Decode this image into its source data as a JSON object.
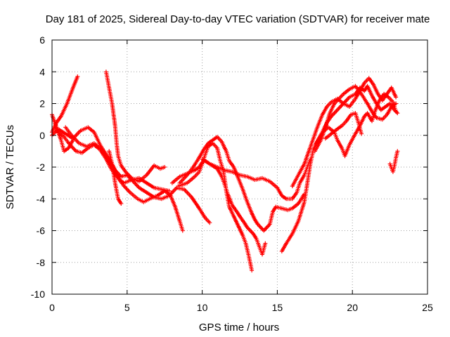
{
  "chart_data": {
    "type": "scatter",
    "title": "Day 181 of 2025, Sidereal Day-to-day VTEC variation (SDTVAR) for receiver mate",
    "xlabel": "GPS time / hours",
    "ylabel": "SDTVAR / TECUs",
    "xlim": [
      0,
      25
    ],
    "ylim": [
      -10,
      6
    ],
    "xticks": [
      0,
      5,
      10,
      15,
      20,
      25
    ],
    "yticks": [
      -10,
      -8,
      -6,
      -4,
      -2,
      0,
      2,
      4,
      6
    ],
    "grid": true,
    "marker": "plus",
    "color": "#ff0000",
    "tracks": [
      [
        [
          0.0,
          0.2
        ],
        [
          0.3,
          0.8
        ],
        [
          0.6,
          1.2
        ],
        [
          1.0,
          2.0
        ],
        [
          1.4,
          3.0
        ],
        [
          1.7,
          3.7
        ]
      ],
      [
        [
          0.0,
          1.3
        ],
        [
          0.3,
          0.5
        ],
        [
          0.6,
          -0.3
        ],
        [
          0.8,
          -1.0
        ],
        [
          1.1,
          -0.8
        ],
        [
          1.4,
          -0.3
        ]
      ],
      [
        [
          0.0,
          0.0
        ],
        [
          0.4,
          0.4
        ],
        [
          0.9,
          0.1
        ],
        [
          1.4,
          -0.2
        ],
        [
          1.9,
          0.3
        ],
        [
          2.4,
          0.5
        ],
        [
          2.8,
          0.2
        ],
        [
          3.2,
          -0.6
        ],
        [
          3.6,
          -1.2
        ],
        [
          4.0,
          -1.8
        ],
        [
          4.3,
          -2.4
        ],
        [
          4.5,
          -2.8
        ],
        [
          4.8,
          -3.0
        ],
        [
          5.3,
          -2.8
        ],
        [
          5.8,
          -2.7
        ],
        [
          6.3,
          -3.0
        ],
        [
          6.8,
          -3.3
        ],
        [
          7.3,
          -3.4
        ],
        [
          7.8,
          -3.5
        ]
      ],
      [
        [
          0.3,
          0.3
        ],
        [
          0.8,
          -0.1
        ],
        [
          1.2,
          -0.6
        ],
        [
          1.6,
          -1.0
        ],
        [
          2.0,
          -1.1
        ],
        [
          2.4,
          -0.8
        ],
        [
          2.8,
          -0.6
        ],
        [
          3.2,
          -0.9
        ],
        [
          3.6,
          -1.5
        ],
        [
          4.0,
          -2.2
        ],
        [
          4.4,
          -2.7
        ],
        [
          4.8,
          -3.2
        ],
        [
          5.2,
          -3.6
        ],
        [
          5.7,
          -4.0
        ],
        [
          6.1,
          -4.2
        ],
        [
          6.5,
          -4.0
        ],
        [
          7.0,
          -3.8
        ],
        [
          7.5,
          -3.5
        ],
        [
          7.9,
          -3.8
        ],
        [
          8.2,
          -4.5
        ],
        [
          8.5,
          -5.4
        ],
        [
          8.7,
          -6.0
        ]
      ],
      [
        [
          0.9,
          0.5
        ],
        [
          1.3,
          0.0
        ],
        [
          1.8,
          -0.5
        ],
        [
          2.3,
          -0.7
        ],
        [
          2.8,
          -0.5
        ],
        [
          3.3,
          -0.9
        ],
        [
          3.8,
          -1.6
        ],
        [
          4.2,
          -2.2
        ],
        [
          4.6,
          -2.6
        ],
        [
          5.0,
          -2.5
        ],
        [
          5.4,
          -2.9
        ],
        [
          5.8,
          -3.3
        ],
        [
          6.3,
          -3.6
        ],
        [
          6.8,
          -3.9
        ],
        [
          7.3,
          -4.0
        ],
        [
          7.8,
          -3.8
        ],
        [
          8.3,
          -3.3
        ],
        [
          8.8,
          -3.4
        ],
        [
          9.3,
          -3.9
        ],
        [
          9.8,
          -4.6
        ],
        [
          10.2,
          -5.2
        ],
        [
          10.5,
          -5.5
        ]
      ],
      [
        [
          3.6,
          4.0
        ],
        [
          3.8,
          3.0
        ],
        [
          4.0,
          2.0
        ],
        [
          4.2,
          0.6
        ],
        [
          4.3,
          -0.5
        ],
        [
          4.4,
          -1.3
        ],
        [
          4.6,
          -1.9
        ],
        [
          4.9,
          -2.3
        ],
        [
          5.3,
          -2.7
        ],
        [
          5.8,
          -2.9
        ],
        [
          6.3,
          -2.5
        ],
        [
          6.8,
          -1.9
        ],
        [
          7.2,
          -2.1
        ],
        [
          7.5,
          -2.0
        ]
      ],
      [
        [
          3.8,
          -1.0
        ],
        [
          4.0,
          -1.8
        ],
        [
          4.1,
          -2.4
        ],
        [
          4.2,
          -3.0
        ],
        [
          4.3,
          -3.5
        ],
        [
          4.4,
          -4.0
        ],
        [
          4.6,
          -4.3
        ]
      ],
      [
        [
          8.0,
          -3.0
        ],
        [
          8.5,
          -2.6
        ],
        [
          9.0,
          -2.4
        ],
        [
          9.5,
          -2.2
        ],
        [
          9.8,
          -2.0
        ],
        [
          10.0,
          -1.7
        ],
        [
          10.2,
          -1.6
        ],
        [
          10.5,
          -1.8
        ],
        [
          11.0,
          -2.1
        ],
        [
          11.3,
          -2.6
        ],
        [
          11.5,
          -3.1
        ],
        [
          11.7,
          -3.7
        ],
        [
          12.0,
          -4.4
        ],
        [
          12.3,
          -4.8
        ],
        [
          12.5,
          -5.1
        ],
        [
          12.8,
          -5.5
        ],
        [
          13.0,
          -5.8
        ],
        [
          13.2,
          -6.0
        ],
        [
          13.4,
          -6.2
        ],
        [
          13.6,
          -6.5
        ],
        [
          13.8,
          -7.0
        ],
        [
          14.0,
          -7.5
        ],
        [
          14.2,
          -6.8
        ]
      ],
      [
        [
          8.4,
          -3.2
        ],
        [
          9.0,
          -3.0
        ],
        [
          9.5,
          -2.6
        ],
        [
          9.8,
          -2.3
        ],
        [
          10.0,
          -1.8
        ],
        [
          10.2,
          -1.2
        ],
        [
          10.4,
          -0.7
        ],
        [
          10.7,
          -0.5
        ],
        [
          11.0,
          -0.8
        ],
        [
          11.2,
          -1.6
        ],
        [
          11.4,
          -2.2
        ],
        [
          11.5,
          -2.8
        ],
        [
          11.6,
          -3.5
        ],
        [
          11.8,
          -4.5
        ],
        [
          12.1,
          -5.1
        ],
        [
          12.3,
          -5.5
        ],
        [
          12.5,
          -5.9
        ],
        [
          12.7,
          -6.3
        ],
        [
          12.9,
          -6.8
        ],
        [
          13.1,
          -7.6
        ],
        [
          13.3,
          -8.5
        ]
      ],
      [
        [
          8.5,
          -3.0
        ],
        [
          9.0,
          -2.5
        ],
        [
          9.4,
          -2.0
        ],
        [
          9.8,
          -1.4
        ],
        [
          10.1,
          -0.9
        ],
        [
          10.4,
          -0.5
        ],
        [
          10.7,
          -0.3
        ],
        [
          11.0,
          -0.1
        ],
        [
          11.3,
          -0.4
        ],
        [
          11.6,
          -1.0
        ],
        [
          11.8,
          -1.6
        ],
        [
          12.1,
          -2.0
        ],
        [
          12.4,
          -2.7
        ],
        [
          12.7,
          -3.4
        ],
        [
          13.0,
          -4.2
        ],
        [
          13.3,
          -4.9
        ],
        [
          13.5,
          -5.3
        ],
        [
          13.7,
          -5.6
        ],
        [
          13.9,
          -5.8
        ],
        [
          14.1,
          -6.0
        ],
        [
          14.3,
          -5.8
        ],
        [
          14.5,
          -5.6
        ],
        [
          14.7,
          -4.8
        ],
        [
          14.9,
          -4.5
        ],
        [
          15.3,
          -4.6
        ],
        [
          15.7,
          -4.7
        ],
        [
          16.0,
          -4.6
        ],
        [
          16.4,
          -4.3
        ],
        [
          16.8,
          -3.7
        ]
      ],
      [
        [
          10.0,
          -1.5
        ],
        [
          10.5,
          -1.8
        ],
        [
          11.0,
          -2.0
        ],
        [
          11.5,
          -2.2
        ],
        [
          12.0,
          -2.3
        ],
        [
          12.5,
          -2.5
        ],
        [
          13.0,
          -2.6
        ],
        [
          13.5,
          -2.8
        ],
        [
          14.0,
          -2.7
        ],
        [
          14.5,
          -2.9
        ],
        [
          15.0,
          -3.3
        ],
        [
          15.3,
          -3.8
        ],
        [
          15.6,
          -4.0
        ],
        [
          16.0,
          -4.0
        ],
        [
          16.3,
          -3.6
        ],
        [
          16.5,
          -3.0
        ],
        [
          16.8,
          -2.5
        ],
        [
          17.0,
          -2.0
        ],
        [
          17.2,
          -1.5
        ]
      ],
      [
        [
          15.3,
          -7.3
        ],
        [
          15.6,
          -6.8
        ],
        [
          16.0,
          -6.2
        ],
        [
          16.4,
          -5.4
        ],
        [
          16.8,
          -4.2
        ],
        [
          17.0,
          -3.0
        ],
        [
          17.2,
          -1.8
        ],
        [
          17.4,
          -0.9
        ],
        [
          17.7,
          -0.3
        ],
        [
          18.0,
          0.2
        ],
        [
          18.3,
          0.8
        ],
        [
          18.6,
          1.2
        ],
        [
          19.0,
          1.6
        ],
        [
          19.4,
          2.0
        ],
        [
          19.8,
          2.4
        ],
        [
          20.2,
          2.6
        ],
        [
          20.5,
          3.0
        ],
        [
          20.8,
          2.8
        ],
        [
          21.0,
          3.1
        ],
        [
          21.3,
          2.5
        ],
        [
          21.6,
          2.0
        ],
        [
          21.9,
          1.6
        ],
        [
          22.2,
          1.8
        ],
        [
          22.5,
          2.0
        ],
        [
          22.8,
          1.6
        ],
        [
          23.0,
          1.4
        ]
      ],
      [
        [
          16.0,
          -3.2
        ],
        [
          16.4,
          -2.5
        ],
        [
          16.8,
          -1.8
        ],
        [
          17.1,
          -1.0
        ],
        [
          17.4,
          -0.2
        ],
        [
          17.7,
          0.6
        ],
        [
          18.0,
          1.3
        ],
        [
          18.3,
          1.8
        ],
        [
          18.6,
          2.1
        ],
        [
          19.0,
          2.3
        ],
        [
          19.4,
          2.0
        ],
        [
          19.8,
          1.8
        ],
        [
          20.2,
          2.3
        ],
        [
          20.5,
          2.8
        ],
        [
          20.8,
          3.3
        ],
        [
          21.1,
          3.6
        ],
        [
          21.4,
          3.2
        ],
        [
          21.7,
          2.6
        ],
        [
          22.0,
          2.2
        ],
        [
          22.3,
          2.6
        ],
        [
          22.6,
          3.0
        ],
        [
          22.9,
          2.4
        ]
      ],
      [
        [
          17.5,
          -1.0
        ],
        [
          17.9,
          -0.3
        ],
        [
          18.2,
          0.5
        ],
        [
          18.5,
          1.4
        ],
        [
          18.8,
          2.0
        ],
        [
          19.1,
          2.3
        ],
        [
          19.4,
          2.6
        ],
        [
          19.8,
          2.9
        ],
        [
          20.2,
          3.1
        ],
        [
          20.6,
          2.6
        ],
        [
          21.0,
          2.0
        ],
        [
          21.3,
          1.5
        ],
        [
          21.6,
          1.1
        ],
        [
          22.0,
          1.0
        ],
        [
          22.3,
          1.3
        ],
        [
          22.6,
          1.8
        ],
        [
          22.9,
          2.0
        ]
      ],
      [
        [
          17.6,
          -0.5
        ],
        [
          18.0,
          0.2
        ],
        [
          18.4,
          0.5
        ],
        [
          18.8,
          0.2
        ],
        [
          19.0,
          -0.3
        ],
        [
          19.3,
          -0.8
        ],
        [
          19.5,
          -1.3
        ],
        [
          19.8,
          -0.6
        ],
        [
          20.2,
          0.1
        ],
        [
          20.5,
          0.6
        ],
        [
          20.8,
          1.2
        ],
        [
          21.0,
          1.4
        ],
        [
          21.3,
          0.9
        ],
        [
          21.5,
          1.5
        ],
        [
          21.8,
          2.2
        ],
        [
          22.1,
          2.6
        ],
        [
          22.4,
          2.4
        ],
        [
          22.7,
          2.1
        ],
        [
          22.9,
          1.5
        ]
      ],
      [
        [
          18.2,
          -0.2
        ],
        [
          18.6,
          0.1
        ],
        [
          19.0,
          0.4
        ],
        [
          19.3,
          0.6
        ],
        [
          19.6,
          0.9
        ],
        [
          19.9,
          1.3
        ],
        [
          20.2,
          1.4
        ],
        [
          20.4,
          0.8
        ],
        [
          20.6,
          0.1
        ]
      ],
      [
        [
          22.5,
          -1.8
        ],
        [
          22.7,
          -2.3
        ],
        [
          22.8,
          -1.9
        ],
        [
          22.9,
          -1.4
        ],
        [
          23.0,
          -1.0
        ]
      ]
    ]
  }
}
